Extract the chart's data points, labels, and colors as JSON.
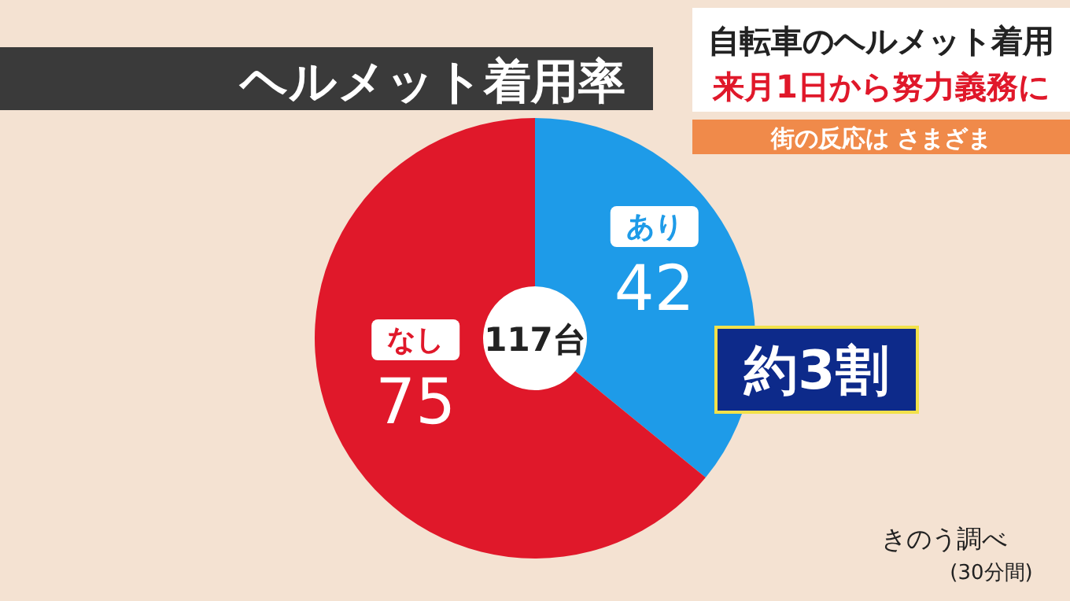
{
  "chart_data": {
    "type": "donut",
    "title": "ヘルメット着用率",
    "subtitle": "自転車のヘルメット着用",
    "categories": [
      "あり",
      "なし"
    ],
    "values": [
      42,
      75
    ],
    "colors": [
      "#1e9be8",
      "#e0182a"
    ],
    "data_labels": true,
    "annotations": [
      "来月1日から努力義務に",
      "街の反応は さまざま",
      "117台",
      "約3割",
      "きのう調べ",
      "(30分間)"
    ]
  }
}
